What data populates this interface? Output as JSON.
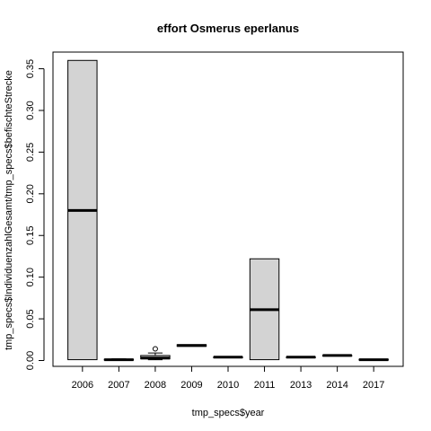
{
  "chart_data": {
    "type": "boxplot",
    "title": "effort Osmerus eperlanus",
    "xlabel": "tmp_specs$year",
    "ylabel": "tmp_specs$IndividuenzahlGesamt/tmp_specs$befischteStrecke",
    "categories": [
      "2006",
      "2007",
      "2008",
      "2009",
      "2010",
      "2011",
      "2013",
      "2014",
      "2017"
    ],
    "ylim": [
      -0.007,
      0.37
    ],
    "yticks": [
      0.0,
      0.05,
      0.1,
      0.15,
      0.2,
      0.25,
      0.3,
      0.35
    ],
    "ytick_labels": [
      "0.00",
      "0.05",
      "0.10",
      "0.15",
      "0.20",
      "0.25",
      "0.30",
      "0.35"
    ],
    "boxes": [
      {
        "category": "2006",
        "min": 0.001,
        "q1": 0.001,
        "median": 0.18,
        "q3": 0.36,
        "max": 0.36,
        "outliers": []
      },
      {
        "category": "2007",
        "min": 0.0005,
        "q1": 0.0005,
        "median": 0.001,
        "q3": 0.0015,
        "max": 0.002,
        "outliers": []
      },
      {
        "category": "2008",
        "min": 0.001,
        "q1": 0.002,
        "median": 0.003,
        "q3": 0.006,
        "max": 0.009,
        "outliers": [
          0.014
        ]
      },
      {
        "category": "2009",
        "min": 0.017,
        "q1": 0.017,
        "median": 0.018,
        "q3": 0.019,
        "max": 0.019,
        "outliers": []
      },
      {
        "category": "2010",
        "min": 0.004,
        "q1": 0.004,
        "median": 0.004,
        "q3": 0.004,
        "max": 0.004,
        "outliers": []
      },
      {
        "category": "2011",
        "min": 0.001,
        "q1": 0.001,
        "median": 0.061,
        "q3": 0.122,
        "max": 0.122,
        "outliers": []
      },
      {
        "category": "2013",
        "min": 0.004,
        "q1": 0.004,
        "median": 0.004,
        "q3": 0.004,
        "max": 0.004,
        "outliers": []
      },
      {
        "category": "2014",
        "min": 0.006,
        "q1": 0.006,
        "median": 0.006,
        "q3": 0.006,
        "max": 0.006,
        "outliers": []
      },
      {
        "category": "2017",
        "min": 0.0005,
        "q1": 0.0005,
        "median": 0.001,
        "q3": 0.0015,
        "max": 0.0015,
        "outliers": []
      }
    ],
    "box_fill": "#d3d3d3",
    "stroke": "#000000",
    "grid": false
  }
}
